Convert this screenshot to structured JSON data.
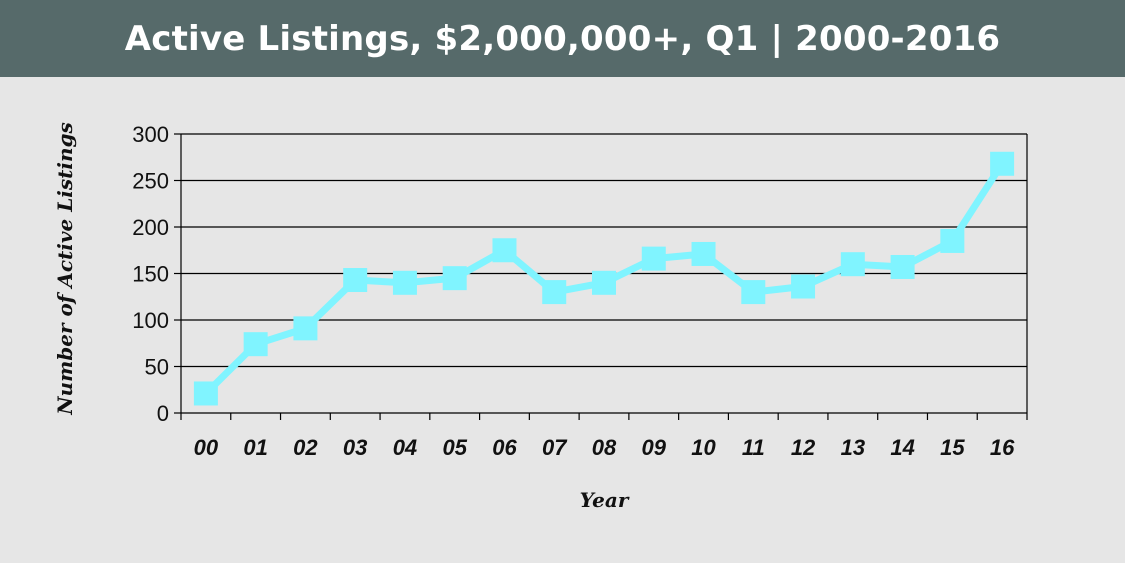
{
  "header": {
    "title": "Active Listings, $2,000,000+, Q1 | 2000-2016"
  },
  "colors": {
    "header_bg": "#566a6a",
    "background": "#e6e6e6",
    "line": "#80f4ff",
    "grid": "#000000"
  },
  "chart_data": {
    "type": "line",
    "title": "Active Listings, $2,000,000+, Q1 | 2000-2016",
    "xlabel": "Year",
    "ylabel": "Number of Active Listings",
    "ylim": [
      0,
      300
    ],
    "yticks": [
      0,
      50,
      100,
      150,
      200,
      250,
      300
    ],
    "grid": true,
    "categories": [
      "00",
      "01",
      "02",
      "03",
      "04",
      "05",
      "06",
      "07",
      "08",
      "09",
      "10",
      "11",
      "12",
      "13",
      "14",
      "15",
      "16"
    ],
    "series": [
      {
        "values": [
          21,
          74,
          91,
          143,
          140,
          145,
          175,
          130,
          140,
          166,
          171,
          130,
          136,
          160,
          157,
          185,
          268
        ]
      }
    ]
  }
}
